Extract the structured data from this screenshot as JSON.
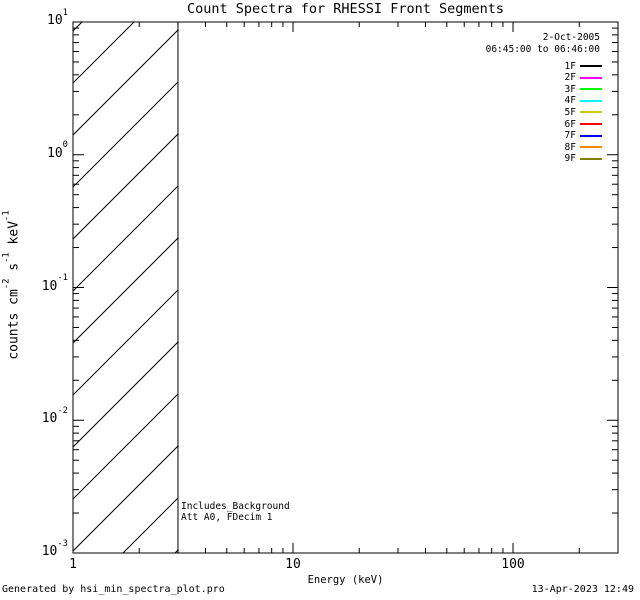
{
  "chart_data": {
    "type": "line",
    "title": "Count Spectra for RHESSI Front Segments",
    "xlabel": "Energy (keV)",
    "ylabel_parts": [
      {
        "text": "counts cm"
      },
      {
        "sup": "-2"
      },
      {
        "text": " s"
      },
      {
        "sup": "-1"
      },
      {
        "text": " keV"
      },
      {
        "sup": "-1"
      }
    ],
    "x_axis": {
      "scale": "log",
      "min": 1,
      "max": 300,
      "major_ticks": [
        1,
        10,
        100
      ],
      "major_tick_labels": [
        "1",
        "10",
        "100"
      ]
    },
    "y_axis": {
      "scale": "log",
      "min": 0.001,
      "max": 10,
      "major_tick_exponents": [
        1,
        0,
        -1,
        -2,
        -3
      ]
    },
    "series": [],
    "hatched_region": {
      "x_min": 1,
      "x_max": 3,
      "style": "diagonal-45-lines"
    },
    "annotations": {
      "line1": "Includes_Background",
      "line2": "Att A0, FDecim 1"
    },
    "header": {
      "date": "2-Oct-2005",
      "time_range": "06:45:00 to 06:46:00"
    },
    "legend": {
      "position": "upper-right",
      "entries": [
        {
          "label": "1F",
          "color": "#000000"
        },
        {
          "label": "2F",
          "color": "#ff00ff"
        },
        {
          "label": "3F",
          "color": "#00ff00"
        },
        {
          "label": "4F",
          "color": "#00ffff"
        },
        {
          "label": "5F",
          "color": "#cccc00"
        },
        {
          "label": "6F",
          "color": "#ff0000"
        },
        {
          "label": "7F",
          "color": "#0000ff"
        },
        {
          "label": "8F",
          "color": "#ff8800"
        },
        {
          "label": "9F",
          "color": "#808000"
        }
      ]
    }
  },
  "footer": {
    "left": "Generated by hsi_min_spectra_plot.pro",
    "right": "13-Apr-2023 12:49"
  },
  "colors": {
    "axis": "#000000",
    "text": "#000000",
    "background": "#ffffff"
  }
}
